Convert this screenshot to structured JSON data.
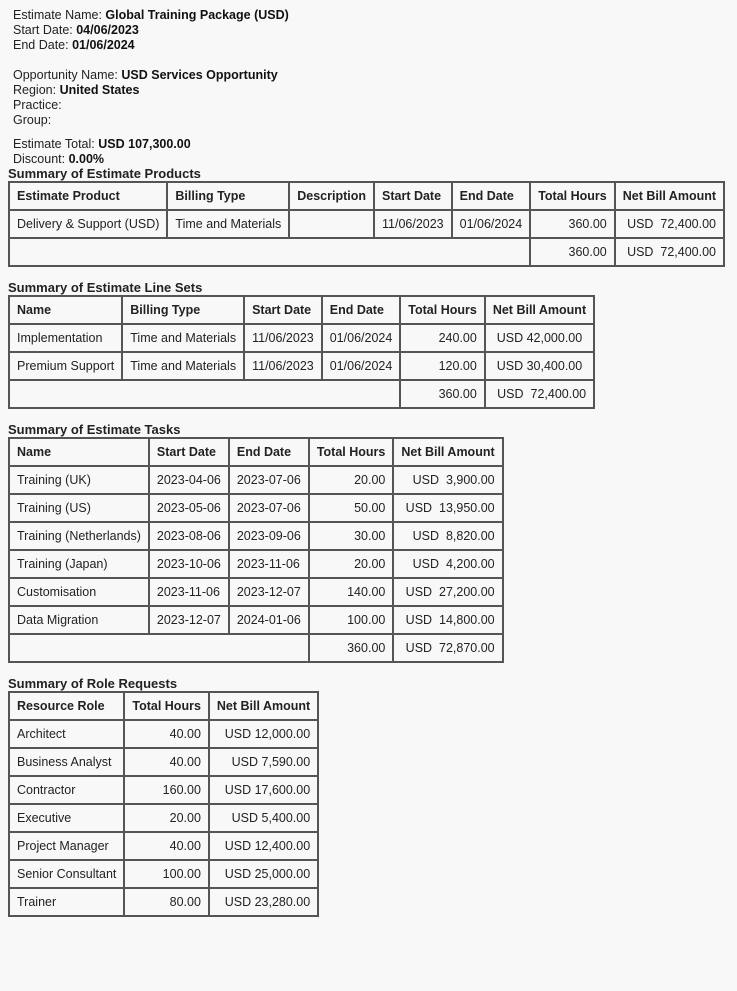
{
  "header": {
    "estimate_name_label": "Estimate Name:",
    "estimate_name": "Global Training Package (USD)",
    "start_date_label": "Start Date:",
    "start_date": "04/06/2023",
    "end_date_label": "End Date:",
    "end_date": "01/06/2024",
    "opportunity_label": "Opportunity Name:",
    "opportunity": "USD Services Opportunity",
    "region_label": "Region:",
    "region": "United States",
    "practice_label": "Practice:",
    "group_label": "Group:",
    "total_label": "Estimate Total:",
    "total": "USD 107,300.00",
    "discount_label": "Discount:",
    "discount": "0.00%"
  },
  "products": {
    "title": "Summary of Estimate Products",
    "columns": [
      "Estimate Product",
      "Billing Type",
      "Description",
      "Start Date",
      "End Date",
      "Total Hours",
      "Net Bill Amount"
    ],
    "rows": [
      [
        "Delivery & Support (USD)",
        "Time and Materials",
        "",
        "11/06/2023",
        "01/06/2024",
        "360.00",
        "USD  72,400.00"
      ]
    ],
    "totals": [
      "360.00",
      "USD  72,400.00"
    ]
  },
  "linesets": {
    "title": "Summary of Estimate Line Sets",
    "columns": [
      "Name",
      "Billing Type",
      "Start Date",
      "End Date",
      "Total Hours",
      "Net Bill Amount"
    ],
    "rows": [
      [
        "Implementation",
        "Time and Materials",
        "11/06/2023",
        "01/06/2024",
        "240.00",
        "USD 42,000.00"
      ],
      [
        "Premium Support",
        "Time and Materials",
        "11/06/2023",
        "01/06/2024",
        "120.00",
        "USD 30,400.00"
      ]
    ],
    "totals": [
      "360.00",
      "USD  72,400.00"
    ]
  },
  "tasks": {
    "title": "Summary of Estimate Tasks",
    "columns": [
      "Name",
      "Start Date",
      "End Date",
      "Total Hours",
      "Net Bill Amount"
    ],
    "rows": [
      [
        "Training (UK)",
        "2023-04-06",
        "2023-07-06",
        "20.00",
        "USD  3,900.00"
      ],
      [
        "Training (US)",
        "2023-05-06",
        "2023-07-06",
        "50.00",
        "USD  13,950.00"
      ],
      [
        "Training (Netherlands)",
        "2023-08-06",
        "2023-09-06",
        "30.00",
        "USD  8,820.00"
      ],
      [
        "Training (Japan)",
        "2023-10-06",
        "2023-11-06",
        "20.00",
        "USD  4,200.00"
      ],
      [
        "Customisation",
        "2023-11-06",
        "2023-12-07",
        "140.00",
        "USD  27,200.00"
      ],
      [
        "Data Migration",
        "2023-12-07",
        "2024-01-06",
        "100.00",
        "USD  14,800.00"
      ]
    ],
    "totals": [
      "360.00",
      "USD  72,870.00"
    ]
  },
  "roles": {
    "title": "Summary of Role Requests",
    "columns": [
      "Resource Role",
      "Total Hours",
      "Net Bill Amount"
    ],
    "rows": [
      [
        "Architect",
        "40.00",
        "USD 12,000.00"
      ],
      [
        "Business Analyst",
        "40.00",
        "USD 7,590.00"
      ],
      [
        "Contractor",
        "160.00",
        "USD 17,600.00"
      ],
      [
        "Executive",
        "20.00",
        "USD 5,400.00"
      ],
      [
        "Project Manager",
        "40.00",
        "USD 12,400.00"
      ],
      [
        "Senior Consultant",
        "100.00",
        "USD 25,000.00"
      ],
      [
        "Trainer",
        "80.00",
        "USD 23,280.00"
      ]
    ]
  }
}
